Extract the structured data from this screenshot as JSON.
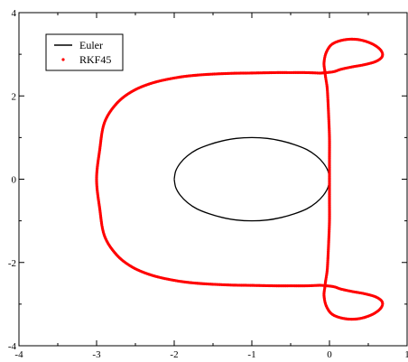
{
  "chart_data": {
    "type": "line",
    "title": "",
    "xlabel": "",
    "ylabel": "",
    "xlim": [
      -4,
      1
    ],
    "ylim": [
      -4,
      4
    ],
    "x_ticks": [
      -4,
      -3,
      -2,
      -1,
      0,
      1
    ],
    "y_ticks": [
      -4,
      -2,
      0,
      2,
      4
    ],
    "x_tick_labels": [
      "-4",
      "-3",
      "-2",
      "-1",
      "0",
      "1"
    ],
    "y_tick_labels": [
      "-4",
      "-2",
      "0",
      "2",
      "4"
    ],
    "grid": false,
    "legend_position": "top-left",
    "series": [
      {
        "name": "Euler",
        "style": "line",
        "color": "#000000",
        "x": [
          -2.0,
          -1.98,
          -1.92,
          -1.83,
          -1.71,
          -1.55,
          -1.38,
          -1.2,
          -1.0,
          -0.8,
          -0.62,
          -0.45,
          -0.29,
          -0.17,
          -0.08,
          -0.02,
          0.0,
          -0.02,
          -0.08,
          -0.17,
          -0.29,
          -0.45,
          -0.62,
          -0.8,
          -1.0,
          -1.2,
          -1.38,
          -1.55,
          -1.71,
          -1.83,
          -1.92,
          -1.98,
          -2.0
        ],
        "y": [
          0.0,
          0.2,
          0.39,
          0.56,
          0.71,
          0.83,
          0.92,
          0.98,
          1.0,
          0.98,
          0.92,
          0.83,
          0.71,
          0.56,
          0.39,
          0.2,
          0.0,
          -0.2,
          -0.39,
          -0.56,
          -0.71,
          -0.83,
          -0.92,
          -0.98,
          -1.0,
          -0.98,
          -0.92,
          -0.83,
          -0.71,
          -0.56,
          -0.39,
          -0.2,
          0.0
        ]
      },
      {
        "name": "RKF45",
        "style": "dots",
        "color": "#ff0000",
        "x": [
          0.0,
          0.0,
          0.0,
          -0.01,
          -0.02,
          -0.03,
          -0.05,
          -0.06,
          -0.07,
          -0.04,
          0.04,
          0.2,
          0.38,
          0.55,
          0.66,
          0.68,
          0.6,
          0.45,
          0.3,
          0.15,
          0.05,
          -0.1,
          -0.15,
          -0.3,
          -0.5,
          -0.7,
          -1.0,
          -1.3,
          -1.7,
          -2.0,
          -2.3,
          -2.55,
          -2.75,
          -2.9,
          -2.96,
          -3.0,
          -2.96,
          -2.9,
          -2.75,
          -2.55,
          -2.3,
          -2.0,
          -1.7,
          -1.3,
          -1.0,
          -0.7,
          -0.5,
          -0.3,
          -0.15,
          -0.1,
          0.05,
          0.15,
          0.3,
          0.45,
          0.6,
          0.68,
          0.66,
          0.55,
          0.38,
          0.2,
          0.04,
          -0.04,
          -0.07,
          -0.06,
          -0.05,
          -0.03,
          -0.02,
          -0.01,
          0.0,
          0.0,
          0.0
        ],
        "y": [
          0.0,
          -0.5,
          -1.0,
          -1.5,
          -1.9,
          -2.2,
          -2.45,
          -2.6,
          -2.8,
          -3.05,
          -3.25,
          -3.35,
          -3.35,
          -3.25,
          -3.1,
          -2.95,
          -2.83,
          -2.75,
          -2.7,
          -2.64,
          -2.58,
          -2.55,
          -2.55,
          -2.56,
          -2.56,
          -2.56,
          -2.55,
          -2.54,
          -2.5,
          -2.43,
          -2.3,
          -2.1,
          -1.8,
          -1.35,
          -0.7,
          0.0,
          0.7,
          1.35,
          1.8,
          2.1,
          2.3,
          2.43,
          2.5,
          2.54,
          2.55,
          2.56,
          2.56,
          2.56,
          2.55,
          2.55,
          2.58,
          2.64,
          2.7,
          2.75,
          2.83,
          2.95,
          3.1,
          3.25,
          3.35,
          3.35,
          3.25,
          3.05,
          2.8,
          2.6,
          2.45,
          2.2,
          1.9,
          1.5,
          1.0,
          0.5,
          0.0
        ]
      }
    ]
  },
  "legend": {
    "items": [
      {
        "label": "Euler",
        "color": "#000000",
        "style": "line"
      },
      {
        "label": "RKF45",
        "color": "#ff0000",
        "style": "dot"
      }
    ]
  }
}
